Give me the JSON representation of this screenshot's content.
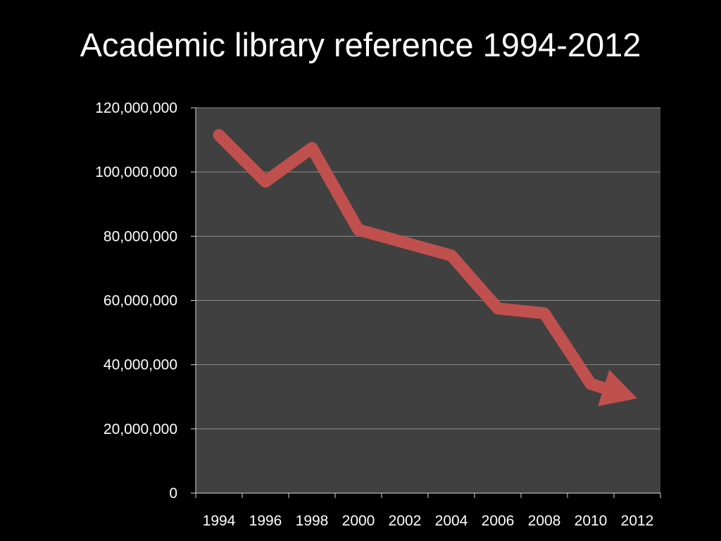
{
  "slide": {
    "title": "Academic library reference 1994-2012"
  },
  "colors": {
    "background": "#000000",
    "plot_area": "#404040",
    "gridline": "#8c8c8c",
    "axis": "#d9d9d9",
    "series_line": "#c0504d",
    "text": "#ffffff"
  },
  "chart_data": {
    "type": "line",
    "title": "Academic library reference 1994-2012",
    "xlabel": "",
    "ylabel": "",
    "categories": [
      "1994",
      "1996",
      "1998",
      "2000",
      "2002",
      "2004",
      "2006",
      "2008",
      "2010",
      "2012"
    ],
    "x_tick_labels": [
      "1994",
      "1996",
      "1998",
      "2000",
      "2002",
      "2004",
      "2006",
      "2008",
      "2010",
      "2012"
    ],
    "y_tick_labels": [
      "0",
      "20,000,000",
      "40,000,000",
      "60,000,000",
      "80,000,000",
      "100,000,000",
      "120,000,000"
    ],
    "ylim": [
      0,
      120000000
    ],
    "y_ticks": [
      0,
      20000000,
      40000000,
      60000000,
      80000000,
      100000000,
      120000000
    ],
    "grid": true,
    "legend": "none",
    "line_end_marker": "arrow",
    "series": [
      {
        "x": [
          1994,
          1996,
          1998,
          2000,
          2002,
          2004,
          2006,
          2008,
          2010,
          2012
        ],
        "values": [
          111500000,
          97000000,
          107500000,
          82000000,
          78000000,
          74000000,
          57500000,
          56000000,
          34000000,
          29500000
        ]
      }
    ]
  }
}
